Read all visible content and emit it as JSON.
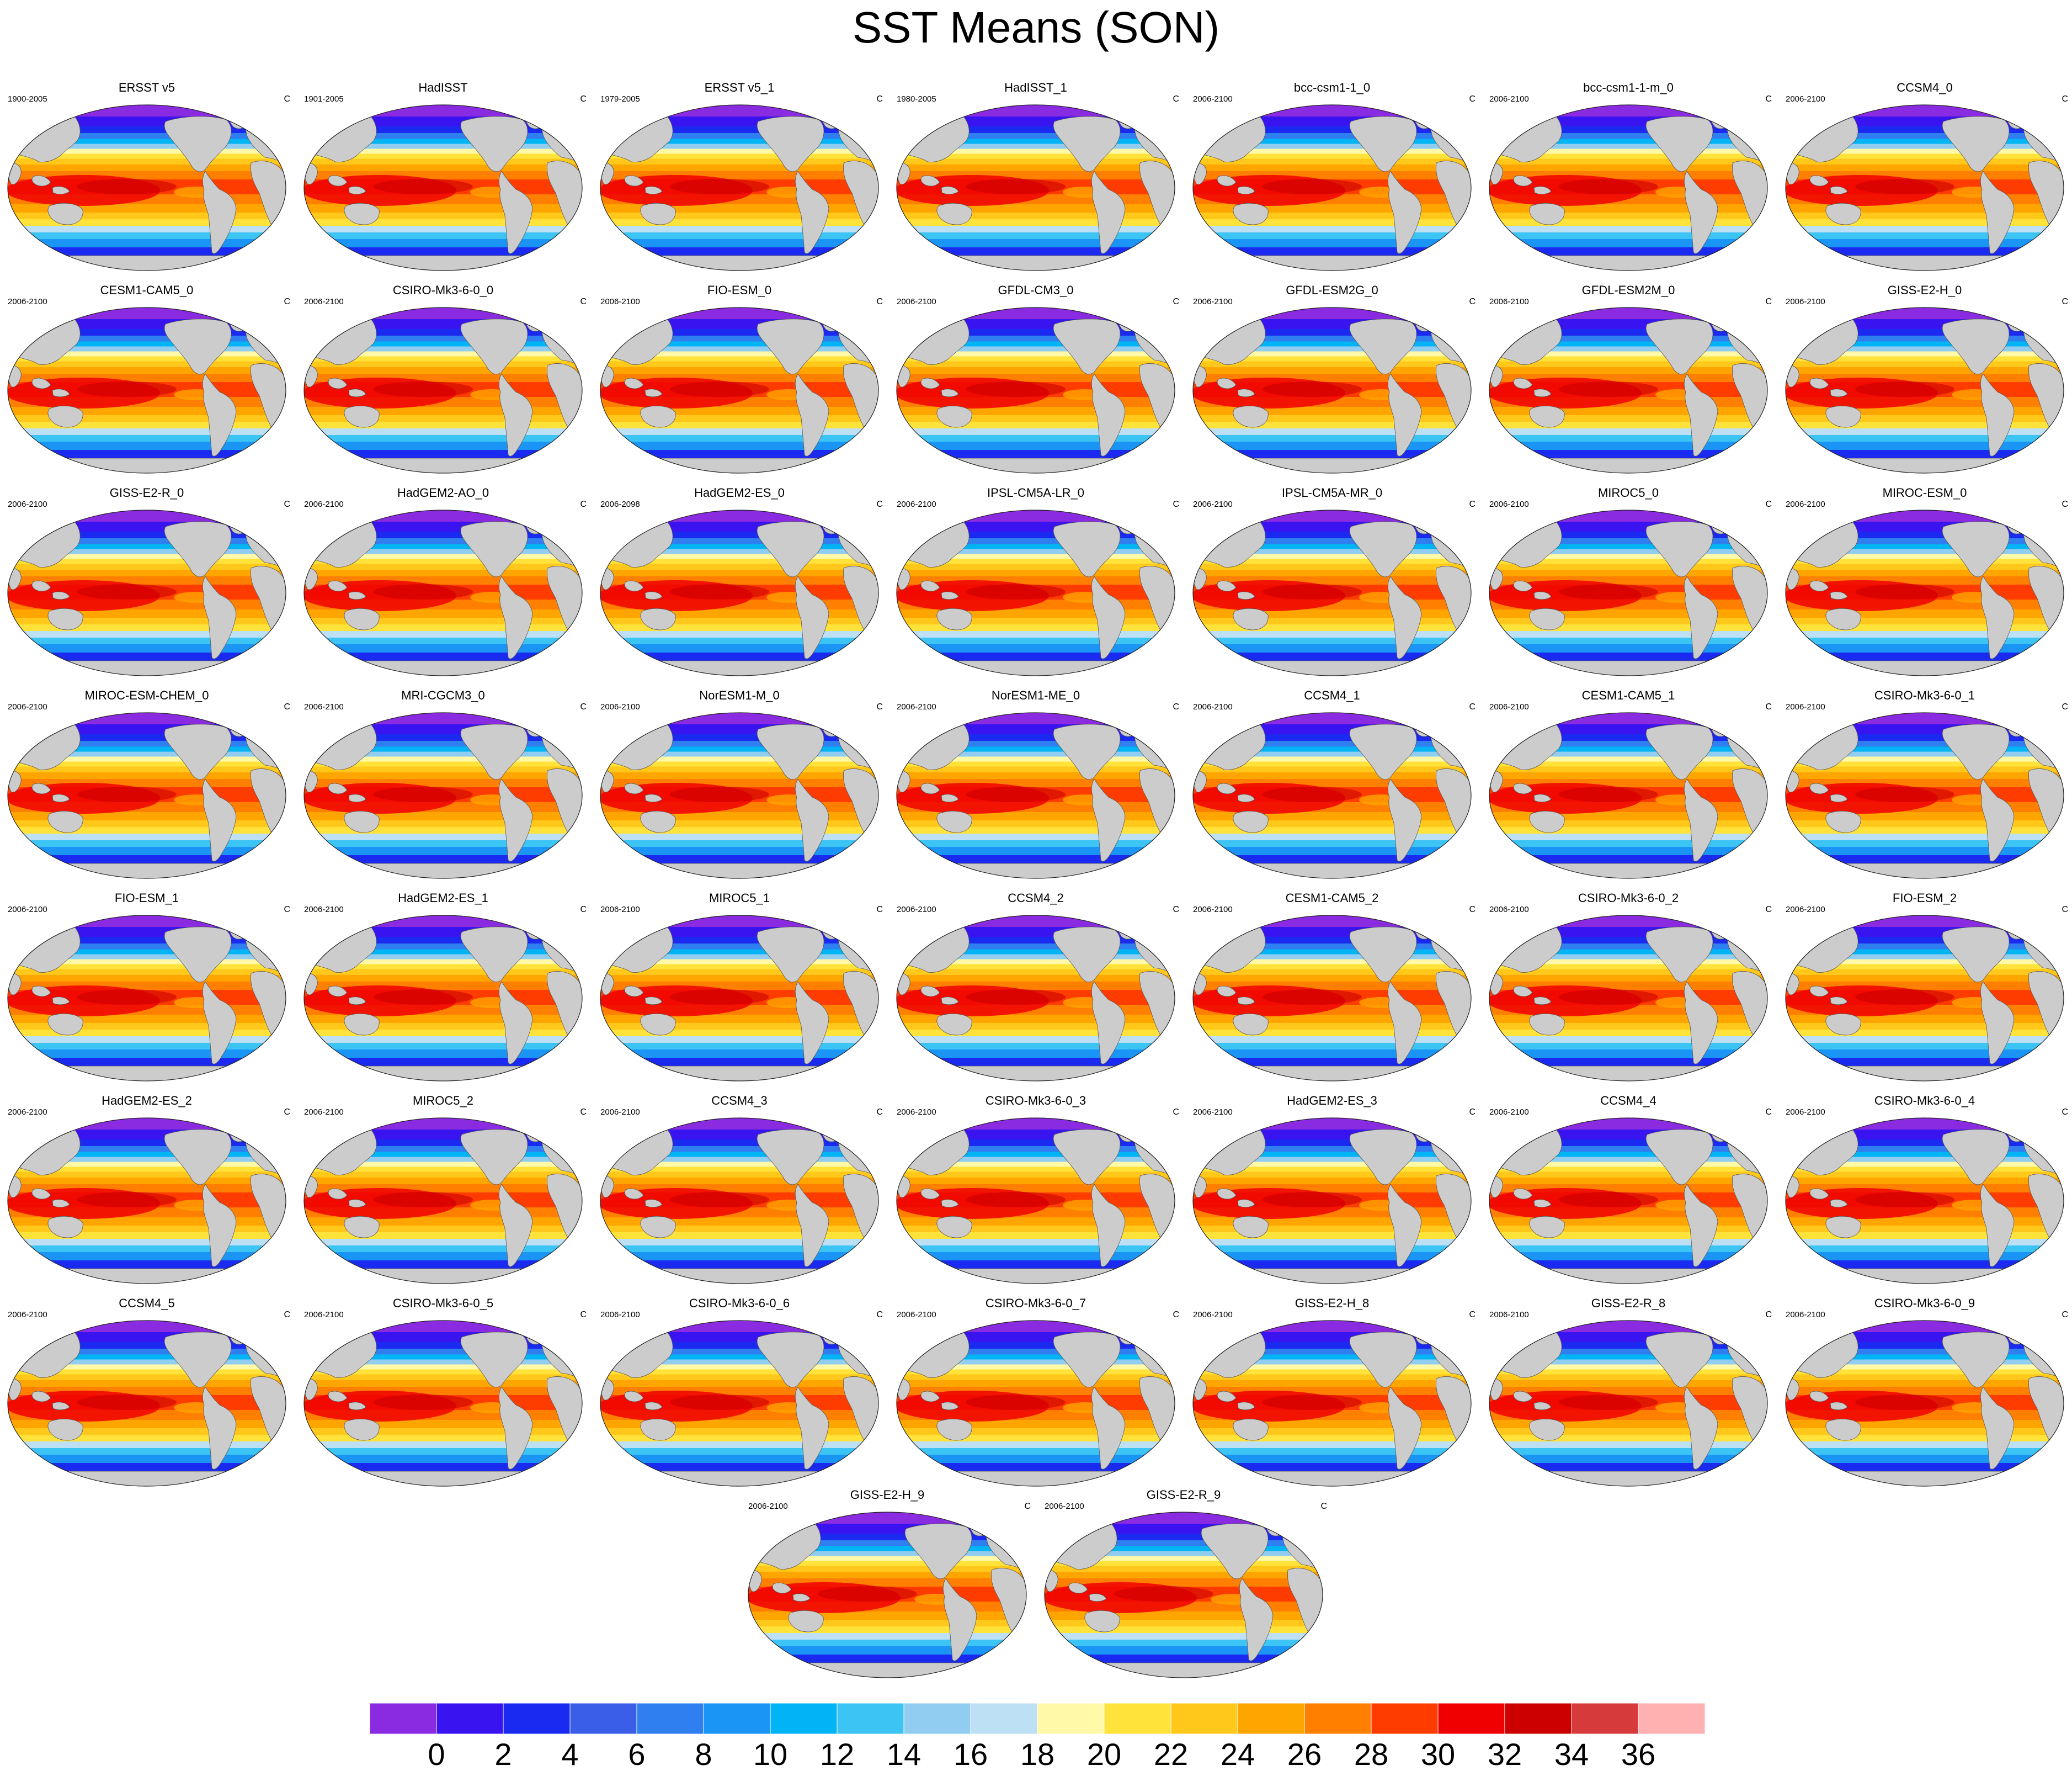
{
  "title": "SST Means (SON)",
  "panels": [
    {
      "title": "ERSST v5",
      "left_label": "1900-2005",
      "right_label": "C"
    },
    {
      "title": "HadISST",
      "left_label": "1901-2005",
      "right_label": "C"
    },
    {
      "title": "ERSST v5_1",
      "left_label": "1979-2005",
      "right_label": "C"
    },
    {
      "title": "HadISST_1",
      "left_label": "1980-2005",
      "right_label": "C"
    },
    {
      "title": "bcc-csm1-1_0",
      "left_label": "2006-2100",
      "right_label": "C"
    },
    {
      "title": "bcc-csm1-1-m_0",
      "left_label": "2006-2100",
      "right_label": "C"
    },
    {
      "title": "CCSM4_0",
      "left_label": "2006-2100",
      "right_label": "C"
    },
    {
      "title": "CESM1-CAM5_0",
      "left_label": "2006-2100",
      "right_label": "C"
    },
    {
      "title": "CSIRO-Mk3-6-0_0",
      "left_label": "2006-2100",
      "right_label": "C"
    },
    {
      "title": "FIO-ESM_0",
      "left_label": "2006-2100",
      "right_label": "C"
    },
    {
      "title": "GFDL-CM3_0",
      "left_label": "2006-2100",
      "right_label": "C"
    },
    {
      "title": "GFDL-ESM2G_0",
      "left_label": "2006-2100",
      "right_label": "C"
    },
    {
      "title": "GFDL-ESM2M_0",
      "left_label": "2006-2100",
      "right_label": "C"
    },
    {
      "title": "GISS-E2-H_0",
      "left_label": "2006-2100",
      "right_label": "C"
    },
    {
      "title": "GISS-E2-R_0",
      "left_label": "2006-2100",
      "right_label": "C"
    },
    {
      "title": "HadGEM2-AO_0",
      "left_label": "2006-2100",
      "right_label": "C"
    },
    {
      "title": "HadGEM2-ES_0",
      "left_label": "2006-2098",
      "right_label": "C"
    },
    {
      "title": "IPSL-CM5A-LR_0",
      "left_label": "2006-2100",
      "right_label": "C"
    },
    {
      "title": "IPSL-CM5A-MR_0",
      "left_label": "2006-2100",
      "right_label": "C"
    },
    {
      "title": "MIROC5_0",
      "left_label": "2006-2100",
      "right_label": "C"
    },
    {
      "title": "MIROC-ESM_0",
      "left_label": "2006-2100",
      "right_label": "C"
    },
    {
      "title": "MIROC-ESM-CHEM_0",
      "left_label": "2006-2100",
      "right_label": "C"
    },
    {
      "title": "MRI-CGCM3_0",
      "left_label": "2006-2100",
      "right_label": "C"
    },
    {
      "title": "NorESM1-M_0",
      "left_label": "2006-2100",
      "right_label": "C"
    },
    {
      "title": "NorESM1-ME_0",
      "left_label": "2006-2100",
      "right_label": "C"
    },
    {
      "title": "CCSM4_1",
      "left_label": "2006-2100",
      "right_label": "C"
    },
    {
      "title": "CESM1-CAM5_1",
      "left_label": "2006-2100",
      "right_label": "C"
    },
    {
      "title": "CSIRO-Mk3-6-0_1",
      "left_label": "2006-2100",
      "right_label": "C"
    },
    {
      "title": "FIO-ESM_1",
      "left_label": "2006-2100",
      "right_label": "C"
    },
    {
      "title": "HadGEM2-ES_1",
      "left_label": "2006-2100",
      "right_label": "C"
    },
    {
      "title": "MIROC5_1",
      "left_label": "2006-2100",
      "right_label": "C"
    },
    {
      "title": "CCSM4_2",
      "left_label": "2006-2100",
      "right_label": "C"
    },
    {
      "title": "CESM1-CAM5_2",
      "left_label": "2006-2100",
      "right_label": "C"
    },
    {
      "title": "CSIRO-Mk3-6-0_2",
      "left_label": "2006-2100",
      "right_label": "C"
    },
    {
      "title": "FIO-ESM_2",
      "left_label": "2006-2100",
      "right_label": "C"
    },
    {
      "title": "HadGEM2-ES_2",
      "left_label": "2006-2100",
      "right_label": "C"
    },
    {
      "title": "MIROC5_2",
      "left_label": "2006-2100",
      "right_label": "C"
    },
    {
      "title": "CCSM4_3",
      "left_label": "2006-2100",
      "right_label": "C"
    },
    {
      "title": "CSIRO-Mk3-6-0_3",
      "left_label": "2006-2100",
      "right_label": "C"
    },
    {
      "title": "HadGEM2-ES_3",
      "left_label": "2006-2100",
      "right_label": "C"
    },
    {
      "title": "CCSM4_4",
      "left_label": "2006-2100",
      "right_label": "C"
    },
    {
      "title": "CSIRO-Mk3-6-0_4",
      "left_label": "2006-2100",
      "right_label": "C"
    },
    {
      "title": "CCSM4_5",
      "left_label": "2006-2100",
      "right_label": "C"
    },
    {
      "title": "CSIRO-Mk3-6-0_5",
      "left_label": "2006-2100",
      "right_label": "C"
    },
    {
      "title": "CSIRO-Mk3-6-0_6",
      "left_label": "2006-2100",
      "right_label": "C"
    },
    {
      "title": "CSIRO-Mk3-6-0_7",
      "left_label": "2006-2100",
      "right_label": "C"
    },
    {
      "title": "GISS-E2-H_8",
      "left_label": "2006-2100",
      "right_label": "C"
    },
    {
      "title": "GISS-E2-R_8",
      "left_label": "2006-2100",
      "right_label": "C"
    },
    {
      "title": "CSIRO-Mk3-6-0_9",
      "left_label": "2006-2100",
      "right_label": "C"
    },
    {
      "title": "GISS-E2-H_9",
      "left_label": "2006-2100",
      "right_label": "C"
    },
    {
      "title": "GISS-E2-R_9",
      "left_label": "2006-2100",
      "right_label": "C"
    }
  ],
  "colors": {
    "land": "#cccccc",
    "colorbar": [
      "#8a2be2",
      "#3a14f0",
      "#1a2af0",
      "#3a5ee8",
      "#2f7ff0",
      "#1a94f5",
      "#00b4f5",
      "#3cc4f5",
      "#90cdf0",
      "#bde0f5",
      "#fff9a8",
      "#ffe23a",
      "#ffc81a",
      "#ffa500",
      "#ff7f00",
      "#ff3c00",
      "#f00000",
      "#cc0000",
      "#d63a3a",
      "#ffb0b0"
    ]
  },
  "chart_data": {
    "type": "heatmap",
    "title": "SST Means (SON)",
    "units": "C",
    "colorbar_levels": [
      0,
      2,
      4,
      6,
      8,
      10,
      12,
      14,
      16,
      18,
      20,
      22,
      24,
      26,
      28,
      30,
      32,
      34,
      36
    ],
    "colorbar_labels": [
      "0",
      "2",
      "4",
      "6",
      "8",
      "10",
      "12",
      "14",
      "16",
      "18",
      "20",
      "22",
      "24",
      "26",
      "28",
      "30",
      "32",
      "34",
      "36"
    ]
  }
}
